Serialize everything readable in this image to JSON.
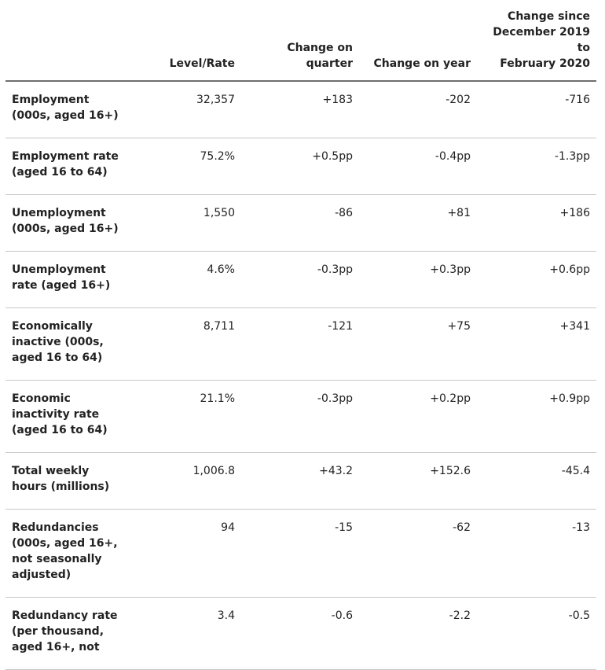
{
  "table": {
    "headers": [
      [],
      [
        "Level/Rate"
      ],
      [
        "Change on",
        "quarter"
      ],
      [
        "Change on year"
      ],
      [
        "Change since",
        "December 2019 to",
        "February 2020"
      ]
    ],
    "rows": [
      {
        "label": [
          "Employment",
          "(000s, aged 16+)"
        ],
        "values": [
          "32,357",
          "+183",
          "-202",
          "-716"
        ]
      },
      {
        "label": [
          "Employment rate",
          "(aged 16 to 64)"
        ],
        "values": [
          "75.2%",
          "+0.5pp",
          "-0.4pp",
          "-1.3pp"
        ]
      },
      {
        "label": [
          "Unemployment",
          "(000s, aged 16+)"
        ],
        "values": [
          "1,550",
          "-86",
          "+81",
          "+186"
        ]
      },
      {
        "label": [
          "Unemployment",
          "rate (aged 16+)"
        ],
        "values": [
          "4.6%",
          "-0.3pp",
          "+0.3pp",
          "+0.6pp"
        ]
      },
      {
        "label": [
          "Economically",
          "inactive (000s,",
          "aged 16 to 64)"
        ],
        "values": [
          "8,711",
          "-121",
          "+75",
          "+341"
        ]
      },
      {
        "label": [
          "Economic",
          "inactivity rate",
          "(aged 16 to 64)"
        ],
        "values": [
          "21.1%",
          "-0.3pp",
          "+0.2pp",
          "+0.9pp"
        ]
      },
      {
        "label": [
          "Total weekly",
          "hours (millions)"
        ],
        "values": [
          "1,006.8",
          "+43.2",
          "+152.6",
          "-45.4"
        ]
      },
      {
        "label": [
          "Redundancies",
          "(000s, aged 16+,",
          "not seasonally",
          "adjusted)"
        ],
        "values": [
          "94",
          "-15",
          "-62",
          "-13"
        ]
      },
      {
        "label": [
          "Redundancy rate",
          "(per thousand,",
          "aged 16+, not"
        ],
        "values": [
          "3.4",
          "-0.6",
          "-2.2",
          "-0.5"
        ]
      }
    ]
  }
}
